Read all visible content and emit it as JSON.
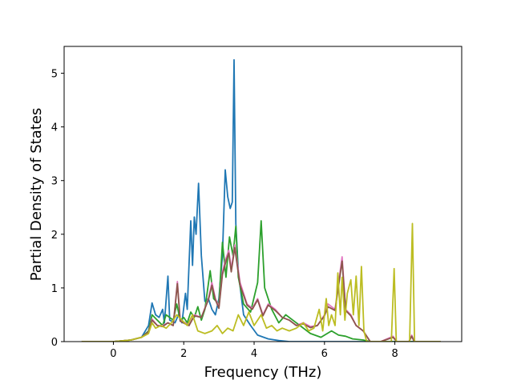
{
  "chart_data": {
    "type": "line",
    "xlabel": "Frequency (THz)",
    "ylabel": "Partial Density of States",
    "xlim": [
      -1.4,
      9.9
    ],
    "ylim": [
      0,
      5.5
    ],
    "xticks": [
      0,
      2,
      4,
      6,
      8
    ],
    "yticks": [
      0,
      1,
      2,
      3,
      4,
      5
    ],
    "grid": false,
    "legend": "none",
    "series": [
      {
        "color": "#1f77b4",
        "points": [
          [
            -0.9,
            0
          ],
          [
            0.0,
            0
          ],
          [
            0.5,
            0.03
          ],
          [
            0.8,
            0.08
          ],
          [
            1.0,
            0.3
          ],
          [
            1.1,
            0.72
          ],
          [
            1.2,
            0.5
          ],
          [
            1.3,
            0.45
          ],
          [
            1.4,
            0.6
          ],
          [
            1.45,
            0.35
          ],
          [
            1.55,
            1.22
          ],
          [
            1.6,
            0.4
          ],
          [
            1.75,
            0.35
          ],
          [
            1.85,
            0.5
          ],
          [
            1.95,
            0.35
          ],
          [
            2.05,
            0.9
          ],
          [
            2.1,
            0.6
          ],
          [
            2.2,
            2.25
          ],
          [
            2.25,
            1.42
          ],
          [
            2.3,
            2.32
          ],
          [
            2.35,
            2.0
          ],
          [
            2.42,
            2.95
          ],
          [
            2.5,
            1.6
          ],
          [
            2.6,
            0.75
          ],
          [
            2.7,
            0.8
          ],
          [
            2.8,
            0.6
          ],
          [
            2.9,
            0.5
          ],
          [
            3.0,
            0.8
          ],
          [
            3.1,
            1.6
          ],
          [
            3.18,
            3.2
          ],
          [
            3.25,
            2.7
          ],
          [
            3.32,
            2.48
          ],
          [
            3.38,
            2.6
          ],
          [
            3.43,
            5.25
          ],
          [
            3.48,
            2.2
          ],
          [
            3.55,
            1.3
          ],
          [
            3.7,
            0.5
          ],
          [
            3.9,
            0.3
          ],
          [
            4.1,
            0.12
          ],
          [
            4.4,
            0.05
          ],
          [
            4.7,
            0.02
          ],
          [
            5.0,
            0.0
          ],
          [
            9.3,
            0
          ]
        ]
      },
      {
        "color": "#2ca02c",
        "points": [
          [
            -0.9,
            0
          ],
          [
            0.0,
            0
          ],
          [
            0.5,
            0.03
          ],
          [
            0.8,
            0.08
          ],
          [
            1.0,
            0.2
          ],
          [
            1.1,
            0.5
          ],
          [
            1.25,
            0.4
          ],
          [
            1.4,
            0.3
          ],
          [
            1.5,
            0.5
          ],
          [
            1.7,
            0.4
          ],
          [
            1.8,
            0.7
          ],
          [
            1.9,
            0.4
          ],
          [
            2.0,
            0.45
          ],
          [
            2.1,
            0.35
          ],
          [
            2.2,
            0.55
          ],
          [
            2.3,
            0.45
          ],
          [
            2.4,
            0.65
          ],
          [
            2.5,
            0.4
          ],
          [
            2.6,
            0.6
          ],
          [
            2.75,
            1.32
          ],
          [
            2.85,
            0.8
          ],
          [
            3.0,
            0.7
          ],
          [
            3.1,
            1.85
          ],
          [
            3.2,
            1.2
          ],
          [
            3.3,
            1.95
          ],
          [
            3.4,
            1.6
          ],
          [
            3.48,
            2.15
          ],
          [
            3.55,
            1.2
          ],
          [
            3.7,
            0.7
          ],
          [
            3.9,
            0.55
          ],
          [
            4.1,
            1.1
          ],
          [
            4.2,
            2.25
          ],
          [
            4.3,
            1.0
          ],
          [
            4.5,
            0.6
          ],
          [
            4.7,
            0.35
          ],
          [
            4.9,
            0.5
          ],
          [
            5.1,
            0.4
          ],
          [
            5.3,
            0.3
          ],
          [
            5.6,
            0.15
          ],
          [
            5.9,
            0.08
          ],
          [
            6.2,
            0.2
          ],
          [
            6.4,
            0.12
          ],
          [
            6.6,
            0.1
          ],
          [
            6.8,
            0.05
          ],
          [
            7.1,
            0.03
          ],
          [
            7.3,
            0
          ],
          [
            9.3,
            0
          ]
        ]
      },
      {
        "color": "#e377c2",
        "points": [
          [
            -0.9,
            0
          ],
          [
            0.0,
            0
          ],
          [
            0.5,
            0.03
          ],
          [
            0.8,
            0.08
          ],
          [
            1.0,
            0.18
          ],
          [
            1.1,
            0.42
          ],
          [
            1.25,
            0.3
          ],
          [
            1.4,
            0.3
          ],
          [
            1.55,
            0.35
          ],
          [
            1.7,
            0.3
          ],
          [
            1.82,
            1.12
          ],
          [
            1.9,
            0.4
          ],
          [
            2.05,
            0.35
          ],
          [
            2.15,
            0.3
          ],
          [
            2.3,
            0.5
          ],
          [
            2.5,
            0.45
          ],
          [
            2.7,
            0.8
          ],
          [
            2.8,
            1.1
          ],
          [
            2.9,
            0.8
          ],
          [
            3.0,
            0.65
          ],
          [
            3.1,
            1.3
          ],
          [
            3.2,
            1.55
          ],
          [
            3.28,
            1.7
          ],
          [
            3.35,
            1.35
          ],
          [
            3.45,
            1.8
          ],
          [
            3.6,
            1.1
          ],
          [
            3.8,
            0.7
          ],
          [
            3.95,
            0.62
          ],
          [
            4.1,
            0.8
          ],
          [
            4.25,
            0.5
          ],
          [
            4.4,
            0.7
          ],
          [
            4.6,
            0.6
          ],
          [
            4.8,
            0.45
          ],
          [
            5.0,
            0.4
          ],
          [
            5.2,
            0.3
          ],
          [
            5.4,
            0.35
          ],
          [
            5.6,
            0.28
          ],
          [
            5.8,
            0.3
          ],
          [
            6.0,
            0.5
          ],
          [
            6.1,
            0.7
          ],
          [
            6.3,
            0.6
          ],
          [
            6.5,
            1.58
          ],
          [
            6.6,
            0.6
          ],
          [
            6.75,
            0.5
          ],
          [
            6.9,
            0.3
          ],
          [
            7.1,
            0.2
          ],
          [
            7.3,
            0
          ],
          [
            7.6,
            0
          ],
          [
            7.95,
            0.1
          ],
          [
            8.05,
            0
          ],
          [
            8.4,
            0
          ],
          [
            8.48,
            0.12
          ],
          [
            8.55,
            0
          ],
          [
            9.3,
            0
          ]
        ]
      },
      {
        "color": "#8c564b",
        "points": [
          [
            -0.9,
            0
          ],
          [
            0.0,
            0
          ],
          [
            0.5,
            0.03
          ],
          [
            0.8,
            0.08
          ],
          [
            1.0,
            0.18
          ],
          [
            1.1,
            0.4
          ],
          [
            1.25,
            0.3
          ],
          [
            1.4,
            0.28
          ],
          [
            1.55,
            0.35
          ],
          [
            1.7,
            0.3
          ],
          [
            1.82,
            1.08
          ],
          [
            1.9,
            0.38
          ],
          [
            2.05,
            0.33
          ],
          [
            2.15,
            0.3
          ],
          [
            2.3,
            0.48
          ],
          [
            2.5,
            0.45
          ],
          [
            2.7,
            0.78
          ],
          [
            2.8,
            1.05
          ],
          [
            2.9,
            0.78
          ],
          [
            3.0,
            0.62
          ],
          [
            3.1,
            1.25
          ],
          [
            3.2,
            1.5
          ],
          [
            3.28,
            1.65
          ],
          [
            3.35,
            1.3
          ],
          [
            3.45,
            1.75
          ],
          [
            3.6,
            1.05
          ],
          [
            3.8,
            0.68
          ],
          [
            3.95,
            0.6
          ],
          [
            4.1,
            0.78
          ],
          [
            4.25,
            0.48
          ],
          [
            4.4,
            0.68
          ],
          [
            4.6,
            0.58
          ],
          [
            4.8,
            0.45
          ],
          [
            5.0,
            0.4
          ],
          [
            5.2,
            0.3
          ],
          [
            5.4,
            0.33
          ],
          [
            5.6,
            0.26
          ],
          [
            5.8,
            0.3
          ],
          [
            6.0,
            0.48
          ],
          [
            6.1,
            0.65
          ],
          [
            6.3,
            0.58
          ],
          [
            6.5,
            1.5
          ],
          [
            6.6,
            0.58
          ],
          [
            6.75,
            0.48
          ],
          [
            6.9,
            0.3
          ],
          [
            7.1,
            0.2
          ],
          [
            7.3,
            0
          ],
          [
            7.6,
            0
          ],
          [
            7.95,
            0.08
          ],
          [
            8.05,
            0
          ],
          [
            8.4,
            0
          ],
          [
            8.48,
            0.1
          ],
          [
            8.55,
            0
          ],
          [
            9.3,
            0
          ]
        ]
      },
      {
        "color": "#bcbd22",
        "points": [
          [
            -0.9,
            0
          ],
          [
            0.0,
            0
          ],
          [
            0.5,
            0.03
          ],
          [
            0.8,
            0.08
          ],
          [
            1.0,
            0.15
          ],
          [
            1.1,
            0.35
          ],
          [
            1.2,
            0.25
          ],
          [
            1.35,
            0.3
          ],
          [
            1.5,
            0.25
          ],
          [
            1.65,
            0.35
          ],
          [
            1.8,
            0.5
          ],
          [
            1.95,
            0.4
          ],
          [
            2.1,
            0.3
          ],
          [
            2.25,
            0.5
          ],
          [
            2.4,
            0.2
          ],
          [
            2.6,
            0.15
          ],
          [
            2.8,
            0.2
          ],
          [
            2.95,
            0.3
          ],
          [
            3.1,
            0.15
          ],
          [
            3.25,
            0.25
          ],
          [
            3.4,
            0.2
          ],
          [
            3.55,
            0.5
          ],
          [
            3.7,
            0.3
          ],
          [
            3.85,
            0.55
          ],
          [
            4.0,
            0.3
          ],
          [
            4.2,
            0.5
          ],
          [
            4.35,
            0.25
          ],
          [
            4.5,
            0.3
          ],
          [
            4.65,
            0.2
          ],
          [
            4.8,
            0.25
          ],
          [
            5.0,
            0.2
          ],
          [
            5.2,
            0.25
          ],
          [
            5.4,
            0.35
          ],
          [
            5.55,
            0.2
          ],
          [
            5.7,
            0.25
          ],
          [
            5.85,
            0.6
          ],
          [
            5.95,
            0.2
          ],
          [
            6.05,
            0.8
          ],
          [
            6.12,
            0.3
          ],
          [
            6.2,
            0.5
          ],
          [
            6.3,
            0.3
          ],
          [
            6.38,
            1.28
          ],
          [
            6.45,
            0.5
          ],
          [
            6.5,
            1.2
          ],
          [
            6.58,
            0.4
          ],
          [
            6.65,
            0.9
          ],
          [
            6.75,
            1.15
          ],
          [
            6.82,
            0.5
          ],
          [
            6.9,
            1.22
          ],
          [
            6.98,
            0.3
          ],
          [
            7.05,
            1.4
          ],
          [
            7.12,
            0.2
          ],
          [
            7.2,
            0
          ],
          [
            7.9,
            0
          ],
          [
            7.98,
            1.36
          ],
          [
            8.04,
            0
          ],
          [
            8.42,
            0
          ],
          [
            8.5,
            2.2
          ],
          [
            8.56,
            0
          ],
          [
            9.3,
            0
          ]
        ]
      }
    ]
  }
}
